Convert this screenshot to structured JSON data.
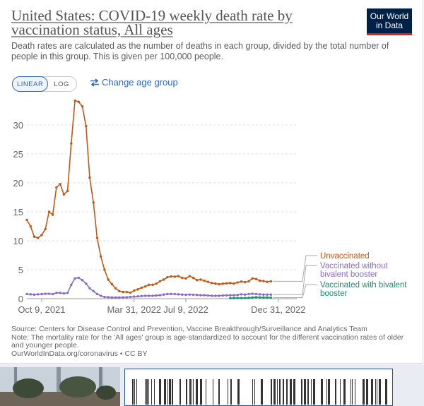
{
  "header": {
    "title": "United States: COVID-19 weekly death rate by vaccination status, All ages",
    "subtitle": "Death rates are calculated as the number of deaths in each group, divided by the total number of people in this group. This is given per 100,000 people.",
    "logo_line1": "Our World",
    "logo_line2": "in Data"
  },
  "controls": {
    "linear_label": "LINEAR",
    "log_label": "LOG",
    "change_age_label": "Change age group"
  },
  "footer": {
    "source": "Source: Centers for Disease Control and Prevention, Vaccine Breakthrough/Surveillance and Analytics Team",
    "note": "Note: The mortality rate for the 'All ages' group is age-standardized to account for the different vaccination rates of older and younger people.",
    "url": "OurWorldInData.org/coronavirus • CC BY"
  },
  "colors": {
    "unvaccinated": "#c05917",
    "without_bivalent": "#8c6bc8",
    "with_bivalent": "#18916f",
    "grid": "#dddddd"
  },
  "chart_data": {
    "type": "line",
    "title": "United States: COVID-19 weekly death rate by vaccination status, All ages",
    "xlabel": "",
    "ylabel": "",
    "ylim": [
      0,
      35
    ],
    "yticks": [
      "0",
      "5",
      "10",
      "15",
      "20",
      "25",
      "30"
    ],
    "xtick_labels": [
      "Oct 9, 2021",
      "Mar 31, 2022",
      "Jul 9, 2022",
      "Dec 31, 2022"
    ],
    "xtick_index": [
      4,
      29,
      43,
      68
    ],
    "week_count": 74,
    "grid": true,
    "series": [
      {
        "name": "Unvaccinated",
        "label_lines": [
          "Unvaccinated"
        ],
        "start_index": 0,
        "values": [
          13.6,
          12.5,
          10.7,
          10.5,
          11.0,
          12.0,
          15.0,
          14.5,
          19.2,
          19.8,
          18.0,
          18.6,
          26.8,
          34.2,
          34.0,
          33.2,
          29.8,
          20.9,
          16.6,
          10.5,
          7.3,
          5.0,
          3.3,
          2.5,
          1.8,
          1.3,
          1.15,
          1.15,
          1.05,
          1.4,
          1.6,
          1.9,
          2.1,
          2.4,
          2.4,
          2.6,
          3.0,
          3.3,
          3.7,
          3.85,
          3.8,
          3.9,
          3.6,
          3.5,
          3.9,
          3.6,
          3.2,
          3.3,
          3.1,
          2.9,
          2.7,
          2.6,
          2.5,
          2.6,
          2.65,
          2.7,
          2.6,
          2.8,
          2.95,
          2.85,
          3.0,
          3.5,
          3.4,
          3.1,
          3.05,
          2.9,
          3.0
        ]
      },
      {
        "name": "Vaccinated without bivalent booster",
        "label_lines": [
          "Vaccinated without",
          "bivalent booster"
        ],
        "start_index": 0,
        "values": [
          0.8,
          0.75,
          0.7,
          0.75,
          0.8,
          0.85,
          0.85,
          0.8,
          1.0,
          1.0,
          0.9,
          1.0,
          2.4,
          3.5,
          3.6,
          3.2,
          2.6,
          1.8,
          1.3,
          0.8,
          0.5,
          0.3,
          0.25,
          0.2,
          0.2,
          0.2,
          0.22,
          0.25,
          0.3,
          0.35,
          0.4,
          0.45,
          0.5,
          0.5,
          0.5,
          0.55,
          0.6,
          0.7,
          0.8,
          0.82,
          0.8,
          0.75,
          0.7,
          0.68,
          0.7,
          0.68,
          0.65,
          0.6,
          0.6,
          0.55,
          0.5,
          0.5,
          0.5,
          0.55,
          0.58,
          0.6,
          0.6,
          0.65,
          0.75,
          0.7,
          0.8,
          0.85,
          0.8,
          0.75,
          0.7,
          0.7,
          0.7
        ]
      },
      {
        "name": "Vaccinated with bivalent booster",
        "label_lines": [
          "Vaccinated with bivalent",
          "booster"
        ],
        "start_index": 55,
        "values": [
          0.1,
          0.1,
          0.12,
          0.1,
          0.12,
          0.15,
          0.2,
          0.25,
          0.22,
          0.2,
          0.2,
          0.18
        ]
      }
    ]
  }
}
